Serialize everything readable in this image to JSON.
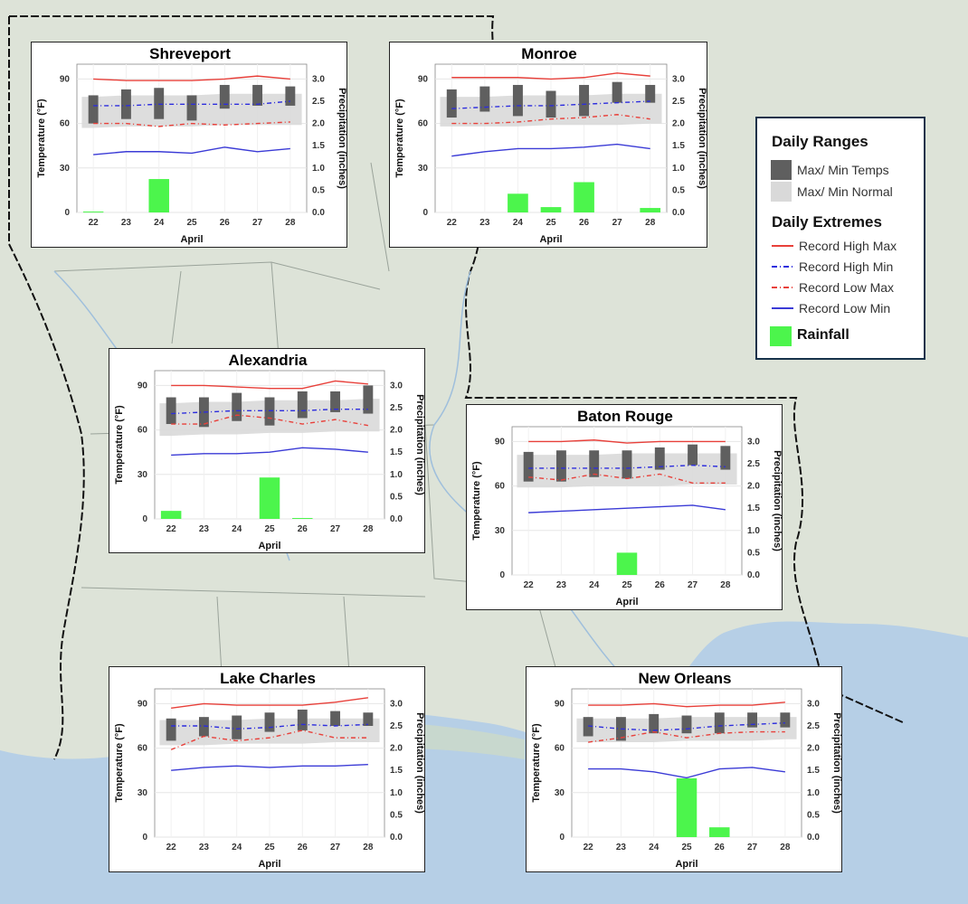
{
  "legend": {
    "ranges_heading": "Daily Ranges",
    "temps_label": "Max/ Min Temps",
    "normal_label": "Max/ Min Normal",
    "extremes_heading": "Daily Extremes",
    "rhmax_label": "Record High Max",
    "rhmin_label": "Record High Min",
    "rlmax_label": "Record Low Max",
    "rlmin_label": "Record Low Min",
    "rain_label": "Rainfall",
    "colors": {
      "temps": "#5f5f5f",
      "normal": "#d9d9d9",
      "rhmax": "#e8403a",
      "rhmin": "#2d2ddd",
      "rlmax": "#e8403a",
      "rlmin": "#3b3bd6",
      "rain": "#4cf54c"
    }
  },
  "chart_data": [
    {
      "type": "bar",
      "title": "Shreveport",
      "xlabel": "April",
      "ylabel": "Temperature (°F)",
      "y2label": "Precipitation (inches)",
      "categories": [
        "22",
        "23",
        "24",
        "25",
        "26",
        "27",
        "28"
      ],
      "ylim": [
        0,
        100
      ],
      "y2lim": [
        0,
        3.33
      ],
      "yticks": [
        "0",
        "30",
        "60",
        "90"
      ],
      "y2ticks": [
        "0.0",
        "0.5",
        "1.0",
        "1.5",
        "2.0",
        "2.5",
        "3.0"
      ],
      "temp_max": [
        79,
        83,
        84,
        79,
        86,
        86,
        85
      ],
      "temp_min": [
        60,
        63,
        63,
        62,
        70,
        72,
        72
      ],
      "normal_max": [
        78,
        79,
        79,
        79,
        80,
        80,
        80
      ],
      "normal_min": [
        57,
        58,
        58,
        58,
        59,
        59,
        59
      ],
      "record_high_max": [
        90,
        89,
        89,
        89,
        90,
        92,
        90
      ],
      "record_high_min": [
        72,
        72,
        73,
        73,
        73,
        73,
        75
      ],
      "record_low_max": [
        60,
        60,
        58,
        60,
        59,
        60,
        61
      ],
      "record_low_min": [
        39,
        41,
        41,
        40,
        44,
        41,
        43
      ],
      "rainfall": [
        0.02,
        0.0,
        0.75,
        0.0,
        0.0,
        0.0,
        0.0
      ]
    },
    {
      "type": "bar",
      "title": "Monroe",
      "xlabel": "April",
      "ylabel": "Temperature (°F)",
      "y2label": "Precipitation (inches)",
      "categories": [
        "22",
        "23",
        "24",
        "25",
        "26",
        "27",
        "28"
      ],
      "ylim": [
        0,
        100
      ],
      "y2lim": [
        0,
        3.33
      ],
      "yticks": [
        "0",
        "30",
        "60",
        "90"
      ],
      "y2ticks": [
        "0.0",
        "0.5",
        "1.0",
        "1.5",
        "2.0",
        "2.5",
        "3.0"
      ],
      "temp_max": [
        83,
        85,
        86,
        82,
        86,
        88,
        86
      ],
      "temp_min": [
        64,
        68,
        65,
        64,
        65,
        74,
        74
      ],
      "normal_max": [
        78,
        78,
        79,
        79,
        79,
        80,
        80
      ],
      "normal_min": [
        58,
        58,
        58,
        59,
        59,
        59,
        60
      ],
      "record_high_max": [
        91,
        91,
        91,
        90,
        91,
        94,
        92
      ],
      "record_high_min": [
        70,
        71,
        72,
        72,
        73,
        74,
        75
      ],
      "record_low_max": [
        60,
        60,
        61,
        63,
        64,
        66,
        63
      ],
      "record_low_min": [
        38,
        41,
        43,
        43,
        44,
        46,
        43
      ],
      "rainfall": [
        0.0,
        0.0,
        0.42,
        0.12,
        0.68,
        0.0,
        0.1
      ]
    },
    {
      "type": "bar",
      "title": "Alexandria",
      "xlabel": "April",
      "ylabel": "Temperature (°F)",
      "y2label": "Precipitation (inches)",
      "categories": [
        "22",
        "23",
        "24",
        "25",
        "26",
        "27",
        "28"
      ],
      "ylim": [
        0,
        100
      ],
      "y2lim": [
        0,
        3.33
      ],
      "yticks": [
        "0",
        "30",
        "60",
        "90"
      ],
      "y2ticks": [
        "0.0",
        "0.5",
        "1.0",
        "1.5",
        "2.0",
        "2.5",
        "3.0"
      ],
      "temp_max": [
        82,
        82,
        85,
        82,
        86,
        86,
        90
      ],
      "temp_min": [
        64,
        62,
        66,
        63,
        68,
        72,
        71
      ],
      "normal_max": [
        78,
        79,
        79,
        80,
        80,
        80,
        81
      ],
      "normal_min": [
        56,
        57,
        57,
        58,
        58,
        59,
        59
      ],
      "record_high_max": [
        90,
        90,
        89,
        88,
        88,
        93,
        91
      ],
      "record_high_min": [
        71,
        72,
        73,
        73,
        73,
        74,
        74
      ],
      "record_low_max": [
        64,
        64,
        70,
        68,
        64,
        67,
        63
      ],
      "record_low_min": [
        43,
        44,
        44,
        45,
        48,
        47,
        45
      ],
      "rainfall": [
        0.18,
        0.0,
        0.0,
        0.93,
        0.02,
        0.0,
        0.0
      ]
    },
    {
      "type": "bar",
      "title": "Baton Rouge",
      "xlabel": "April",
      "ylabel": "Temperature (°F)",
      "y2label": "Precipitation (inches)",
      "categories": [
        "22",
        "23",
        "24",
        "25",
        "26",
        "27",
        "28"
      ],
      "ylim": [
        0,
        100
      ],
      "y2lim": [
        0,
        3.33
      ],
      "yticks": [
        "0",
        "30",
        "60",
        "90"
      ],
      "y2ticks": [
        "0.0",
        "0.5",
        "1.0",
        "1.5",
        "2.0",
        "2.5",
        "3.0"
      ],
      "temp_max": [
        83,
        84,
        84,
        84,
        86,
        88,
        87
      ],
      "temp_min": [
        63,
        63,
        66,
        65,
        71,
        74,
        71
      ],
      "normal_max": [
        81,
        81,
        81,
        82,
        82,
        82,
        82
      ],
      "normal_min": [
        59,
        59,
        60,
        60,
        60,
        61,
        61
      ],
      "record_high_max": [
        90,
        90,
        91,
        89,
        90,
        90,
        90
      ],
      "record_high_min": [
        72,
        72,
        72,
        72,
        73,
        74,
        73
      ],
      "record_low_max": [
        66,
        64,
        68,
        65,
        68,
        62,
        62
      ],
      "record_low_min": [
        42,
        43,
        44,
        45,
        46,
        47,
        44
      ],
      "rainfall": [
        0.0,
        0.0,
        0.0,
        0.5,
        0.0,
        0.0,
        0.0
      ]
    },
    {
      "type": "bar",
      "title": "Lake Charles",
      "xlabel": "April",
      "ylabel": "Temperature (°F)",
      "y2label": "Precipitation (inches)",
      "categories": [
        "22",
        "23",
        "24",
        "25",
        "26",
        "27",
        "28"
      ],
      "ylim": [
        0,
        100
      ],
      "y2lim": [
        0,
        3.33
      ],
      "yticks": [
        "0",
        "30",
        "60",
        "90"
      ],
      "y2ticks": [
        "0.0",
        "0.5",
        "1.0",
        "1.5",
        "2.0",
        "2.5",
        "3.0"
      ],
      "temp_max": [
        80,
        81,
        82,
        84,
        86,
        85,
        84
      ],
      "temp_min": [
        65,
        68,
        66,
        71,
        72,
        75,
        75
      ],
      "normal_max": [
        79,
        79,
        79,
        80,
        80,
        80,
        80
      ],
      "normal_min": [
        62,
        62,
        63,
        63,
        63,
        64,
        64
      ],
      "record_high_max": [
        87,
        90,
        89,
        89,
        89,
        91,
        94
      ],
      "record_high_min": [
        75,
        75,
        73,
        74,
        76,
        75,
        76
      ],
      "record_low_max": [
        59,
        68,
        65,
        67,
        72,
        67,
        67
      ],
      "record_low_min": [
        45,
        47,
        48,
        47,
        48,
        48,
        49
      ],
      "rainfall": [
        0.0,
        0.0,
        0.0,
        0.0,
        0.0,
        0.0,
        0.0
      ]
    },
    {
      "type": "bar",
      "title": "New Orleans",
      "xlabel": "April",
      "ylabel": "Temperature (°F)",
      "y2label": "Precipitation (inches)",
      "categories": [
        "22",
        "23",
        "24",
        "25",
        "26",
        "27",
        "28"
      ],
      "ylim": [
        0,
        100
      ],
      "y2lim": [
        0,
        3.33
      ],
      "yticks": [
        "0",
        "30",
        "60",
        "90"
      ],
      "y2ticks": [
        "0.0",
        "0.5",
        "1.0",
        "1.5",
        "2.0",
        "2.5",
        "3.0"
      ],
      "temp_max": [
        81,
        81,
        83,
        82,
        84,
        84,
        84
      ],
      "temp_min": [
        68,
        65,
        70,
        70,
        70,
        74,
        74
      ],
      "normal_max": [
        80,
        80,
        80,
        81,
        81,
        81,
        81
      ],
      "normal_min": [
        64,
        64,
        64,
        65,
        65,
        65,
        66
      ],
      "record_high_max": [
        89,
        89,
        90,
        88,
        89,
        89,
        91
      ],
      "record_high_min": [
        75,
        73,
        72,
        73,
        75,
        76,
        77
      ],
      "record_low_max": [
        64,
        67,
        71,
        67,
        70,
        71,
        71
      ],
      "record_low_min": [
        46,
        46,
        44,
        40,
        46,
        47,
        44
      ],
      "rainfall": [
        0.0,
        0.0,
        0.0,
        1.32,
        0.22,
        0.0,
        0.0
      ]
    }
  ]
}
